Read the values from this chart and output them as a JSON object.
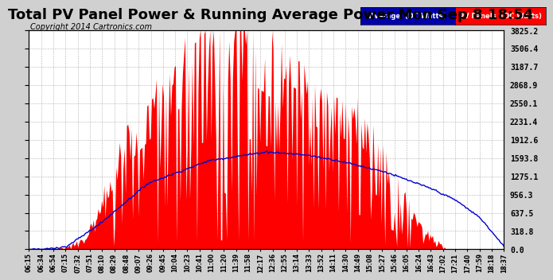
{
  "title": "Total PV Panel Power & Running Average Power Mon Sep 8 18:54",
  "copyright": "Copyright 2014 Cartronics.com",
  "legend_avg": "Average  (DC Watts)",
  "legend_pv": "PV Panels  (DC Watts)",
  "ylabel_right": [
    "3825.2",
    "3506.4",
    "3187.7",
    "2868.9",
    "2550.1",
    "2231.4",
    "1912.6",
    "1593.8",
    "1275.1",
    "956.3",
    "637.5",
    "318.8",
    "0.0"
  ],
  "ymax": 3825.2,
  "ymin": 0.0,
  "yticks": [
    3825.2,
    3506.4,
    3187.7,
    2868.9,
    2550.1,
    2231.4,
    1912.6,
    1593.8,
    1275.1,
    956.3,
    637.5,
    318.8,
    0.0
  ],
  "bg_color": "#d0d0d0",
  "plot_bg_color": "#ffffff",
  "pv_fill_color": "#ff0000",
  "avg_line_color": "#0000cc",
  "grid_color": "#aaaaaa",
  "title_fontsize": 13,
  "copyright_fontsize": 7,
  "xtick_labels": [
    "06:15",
    "06:34",
    "06:54",
    "07:15",
    "07:32",
    "07:51",
    "08:10",
    "08:29",
    "08:48",
    "09:07",
    "09:26",
    "09:45",
    "10:04",
    "10:23",
    "10:41",
    "11:00",
    "11:20",
    "11:39",
    "11:58",
    "12:17",
    "12:36",
    "12:55",
    "13:14",
    "13:33",
    "13:52",
    "14:11",
    "14:30",
    "14:49",
    "15:08",
    "15:27",
    "15:46",
    "16:05",
    "16:24",
    "16:43",
    "17:02",
    "17:21",
    "17:40",
    "17:59",
    "18:18",
    "18:37"
  ],
  "n_points": 400
}
